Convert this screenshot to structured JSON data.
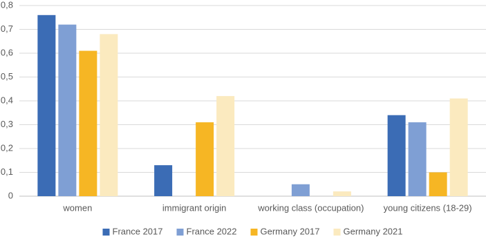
{
  "chart_data": {
    "type": "bar",
    "categories": [
      "women",
      "immigrant origin",
      "working class (occupation)",
      "young citizens (18-29)"
    ],
    "series": [
      {
        "name": "France 2017",
        "color": "#3b6cb5",
        "values": [
          0.76,
          0.13,
          null,
          0.34
        ]
      },
      {
        "name": "France 2022",
        "color": "#7f9fd4",
        "values": [
          0.72,
          null,
          0.05,
          0.31
        ]
      },
      {
        "name": "Germany 2017",
        "color": "#f6b624",
        "values": [
          0.61,
          0.31,
          null,
          0.1
        ]
      },
      {
        "name": "Germany 2021",
        "color": "#fbeabf",
        "values": [
          0.68,
          0.42,
          0.02,
          0.41
        ]
      }
    ],
    "ylim": [
      0,
      0.8
    ],
    "yticks": [
      0,
      {
        "value": 0.1,
        "label": "0,1"
      },
      {
        "value": 0.2,
        "label": "0,2"
      },
      {
        "value": 0.3,
        "label": "0,3"
      },
      {
        "value": 0.4,
        "label": "0,4"
      },
      {
        "value": 0.5,
        "label": "0,5"
      },
      {
        "value": 0.6,
        "label": "0,6"
      },
      {
        "value": 0.7,
        "label": "0,7"
      },
      {
        "value": 0.8,
        "label": "0,8"
      }
    ],
    "grid": true,
    "legend": "bottom"
  }
}
